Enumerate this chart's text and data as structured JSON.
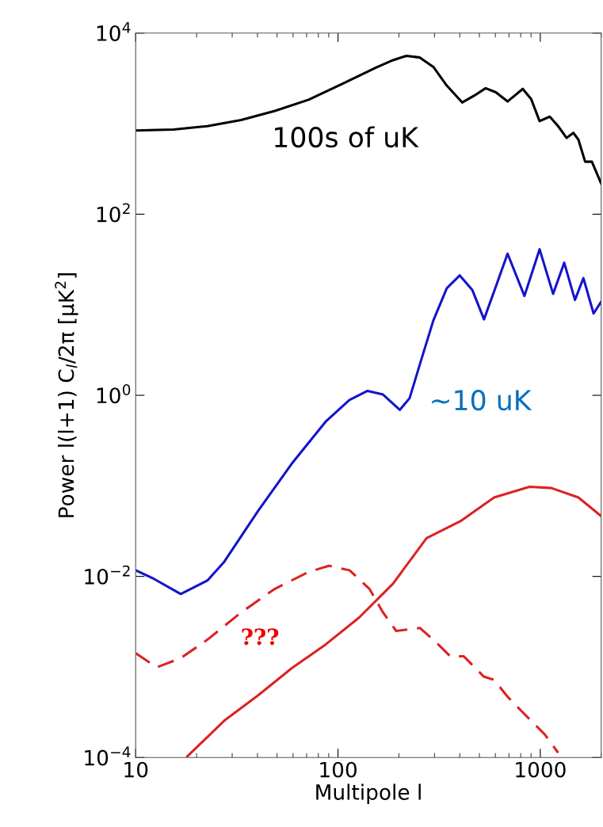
{
  "chart_data": {
    "type": "line",
    "xlabel": "Multipole l",
    "ylabel": "Power l(l+1) C$_{l}$/2π [μK$^{2}$]",
    "log": "xy",
    "xlim": [
      10,
      2000
    ],
    "ylim": [
      0.0001,
      10000
    ],
    "xticks": [
      10,
      100,
      1000
    ],
    "yticks": [
      {
        "value": 0.0001,
        "label": "10$^{−4}$"
      },
      {
        "value": 0.01,
        "label": "10$^{−2}$"
      },
      {
        "value": 1,
        "label": "10$^{0}$"
      },
      {
        "value": 100,
        "label": "10$^{2}$"
      },
      {
        "value": 10000,
        "label": "10$^{4}$"
      }
    ],
    "grid": false,
    "legend": false,
    "series": [
      {
        "color": "#000000",
        "line_style": "solid",
        "x": [
          10,
          15.4,
          22.6,
          33.2,
          48.8,
          71.6,
          105,
          154,
          187,
          218,
          254,
          296,
          345,
          411,
          470,
          537,
          603,
          689,
          819,
          901,
          992,
          1114,
          1225,
          1349,
          1457,
          1543,
          1666,
          1799,
          2000
        ],
        "values": [
          840,
          861,
          938,
          1096,
          1381,
          1836,
          2750,
          4150,
          5020,
          5610,
          5370,
          4230,
          2630,
          1714,
          2030,
          2460,
          2220,
          1758,
          2420,
          1868,
          1067,
          1194,
          938,
          695,
          791,
          666,
          380,
          380,
          218
        ]
      },
      {
        "color": "#1414cc",
        "line_style": "solid",
        "x": [
          10,
          12.3,
          16.7,
          22.6,
          27.4,
          40.3,
          59.1,
          86.8,
          114,
          140,
          167,
          202,
          226,
          254,
          296,
          345,
          400,
          461,
          527,
          603,
          689,
          835,
          992,
          1157,
          1313,
          1484,
          1634,
          1834,
          2000
        ],
        "values": [
          0.0117,
          0.0094,
          0.0064,
          0.009,
          0.0145,
          0.053,
          0.176,
          0.51,
          0.89,
          1.12,
          1.02,
          0.69,
          0.93,
          2.2,
          6.7,
          15.2,
          21.1,
          14.6,
          6.9,
          15.9,
          36.6,
          12.5,
          41,
          13.2,
          29.1,
          11.3,
          19.7,
          8,
          10.8
        ]
      },
      {
        "color": "#dd2222",
        "line_style": "solid",
        "x": [
          18,
          27.4,
          40.3,
          59.1,
          86.8,
          127,
          187,
          274,
          403,
          591,
          885,
          1135,
          1543,
          2000
        ],
        "values": [
          0.000103,
          0.000255,
          0.000486,
          0.00097,
          0.00177,
          0.0035,
          0.0083,
          0.0265,
          0.0407,
          0.0744,
          0.0977,
          0.0946,
          0.0744,
          0.0463
        ]
      },
      {
        "color": "#dd2222",
        "line_style": "dashed",
        "x": [
          10,
          12.7,
          16.7,
          22.6,
          33.2,
          48.8,
          71.6,
          90.2,
          114,
          143,
          167,
          194,
          254,
          308,
          359,
          419,
          527,
          591,
          689,
          803,
          1052,
          1225
        ],
        "values": [
          0.00142,
          0.00099,
          0.00125,
          0.002,
          0.004,
          0.0073,
          0.0112,
          0.0131,
          0.0117,
          0.0073,
          0.004,
          0.0025,
          0.0027,
          0.00184,
          0.00131,
          0.00131,
          0.00078,
          0.00072,
          0.00047,
          0.00033,
          0.00018,
          0.000113
        ]
      }
    ],
    "annotations": [
      "100s of uK",
      "~10 uK",
      "???"
    ]
  }
}
